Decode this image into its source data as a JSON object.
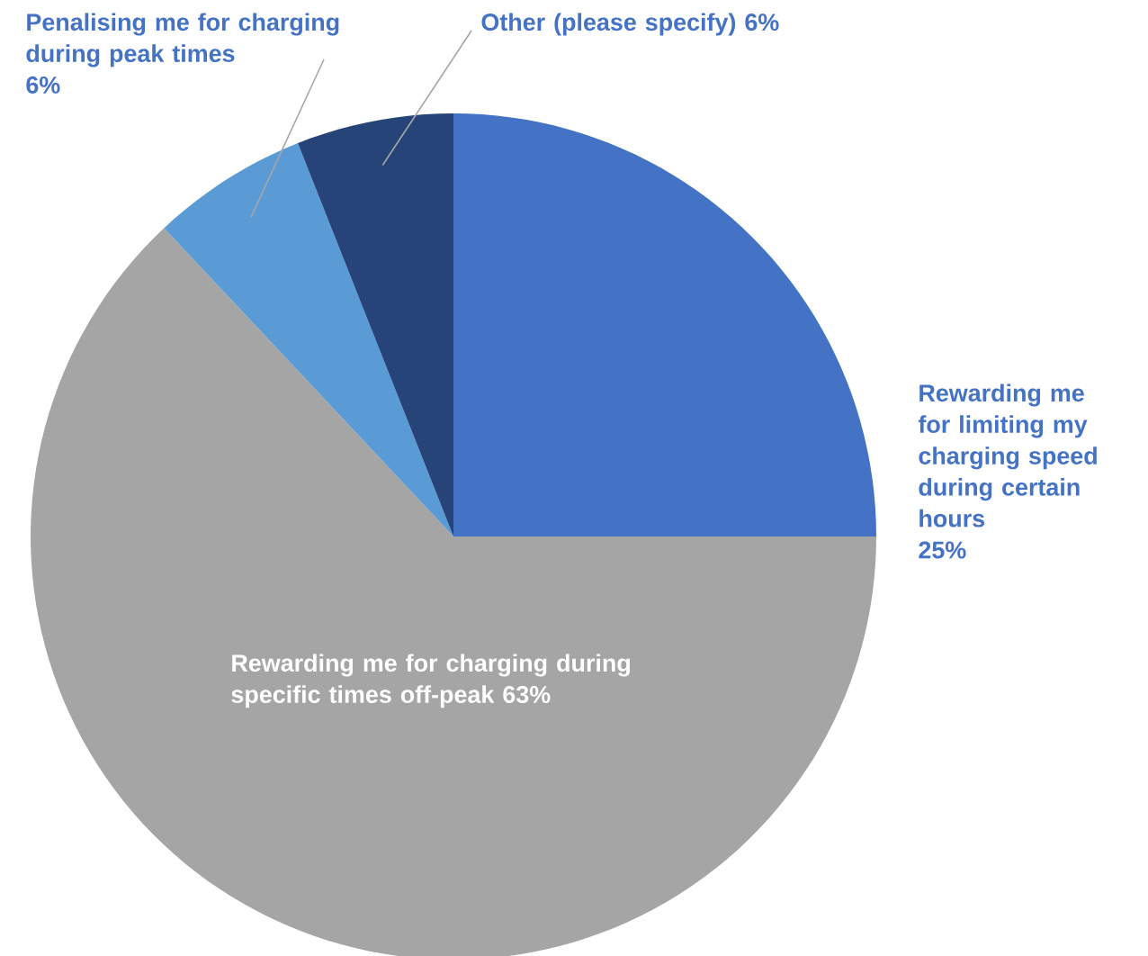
{
  "chart_data": {
    "type": "pie",
    "categories": [
      "Rewarding me for limiting my charging speed during certain hours",
      "Rewarding me for charging during specific times off-peak",
      "Penalising me for charging during peak times",
      "Other (please specify)"
    ],
    "values": [
      25,
      63,
      6,
      6
    ],
    "value_labels": [
      "25%",
      "63%",
      "6%",
      "6%"
    ],
    "colors": [
      "#4472c4",
      "#a5a5a5",
      "#5b9bd5",
      "#264478"
    ]
  }
}
